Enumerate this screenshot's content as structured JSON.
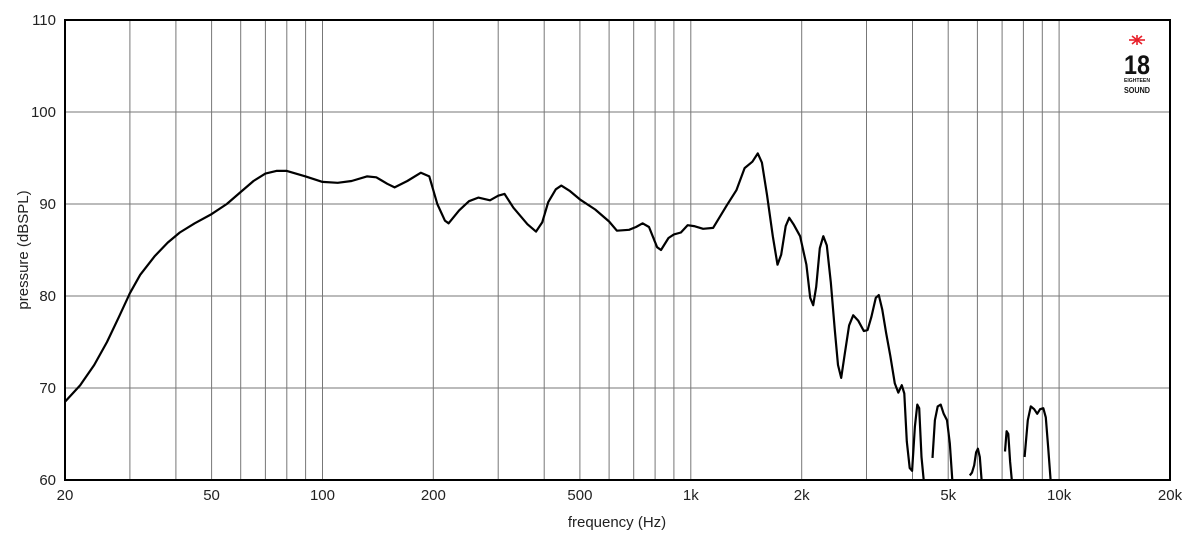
{
  "chart_data": {
    "type": "line",
    "title": "",
    "xlabel": "frequency (Hz)",
    "ylabel": "pressure (dBSPL)",
    "x_scale": "log",
    "xlim": [
      20,
      20000
    ],
    "ylim": [
      60,
      110
    ],
    "grid": true,
    "x_gridlines": [
      30,
      40,
      50,
      60,
      70,
      80,
      90,
      100,
      200,
      300,
      400,
      500,
      600,
      700,
      800,
      900,
      1000,
      2000,
      3000,
      4000,
      5000,
      6000,
      7000,
      8000,
      9000,
      10000
    ],
    "x_ticks": [
      {
        "value": 20,
        "label": "20"
      },
      {
        "value": 50,
        "label": "50"
      },
      {
        "value": 100,
        "label": "100"
      },
      {
        "value": 200,
        "label": "200"
      },
      {
        "value": 500,
        "label": "500"
      },
      {
        "value": 1000,
        "label": "1k"
      },
      {
        "value": 2000,
        "label": "2k"
      },
      {
        "value": 5000,
        "label": "5k"
      },
      {
        "value": 10000,
        "label": "10k"
      },
      {
        "value": 20000,
        "label": "20k"
      }
    ],
    "y_ticks": [
      {
        "value": 60,
        "label": "60"
      },
      {
        "value": 70,
        "label": "70"
      },
      {
        "value": 80,
        "label": "80"
      },
      {
        "value": 90,
        "label": "90"
      },
      {
        "value": 100,
        "label": "100"
      },
      {
        "value": 110,
        "label": "110"
      }
    ],
    "series": [
      {
        "color": "#000000",
        "points": [
          [
            20,
            68.5
          ],
          [
            22,
            70.3
          ],
          [
            24,
            72.5
          ],
          [
            26,
            75.0
          ],
          [
            28,
            77.7
          ],
          [
            30,
            80.3
          ],
          [
            32,
            82.3
          ],
          [
            35,
            84.3
          ],
          [
            38,
            85.8
          ],
          [
            41,
            86.9
          ],
          [
            45,
            87.9
          ],
          [
            50,
            88.9
          ],
          [
            55,
            90.0
          ],
          [
            60,
            91.3
          ],
          [
            65,
            92.5
          ],
          [
            70,
            93.3
          ],
          [
            75,
            93.6
          ],
          [
            80,
            93.6
          ],
          [
            90,
            93.0
          ],
          [
            100,
            92.4
          ],
          [
            110,
            92.3
          ],
          [
            120,
            92.5
          ],
          [
            132,
            93.0
          ],
          [
            140,
            92.9
          ],
          [
            150,
            92.2
          ],
          [
            157,
            91.8
          ],
          [
            170,
            92.5
          ],
          [
            185,
            93.4
          ],
          [
            195,
            93.0
          ],
          [
            205,
            90.0
          ],
          [
            215,
            88.2
          ],
          [
            220,
            87.9
          ],
          [
            235,
            89.3
          ],
          [
            250,
            90.3
          ],
          [
            265,
            90.7
          ],
          [
            285,
            90.4
          ],
          [
            300,
            90.9
          ],
          [
            312,
            91.1
          ],
          [
            330,
            89.6
          ],
          [
            360,
            87.8
          ],
          [
            380,
            87.0
          ],
          [
            395,
            88.0
          ],
          [
            410,
            90.2
          ],
          [
            430,
            91.6
          ],
          [
            445,
            92.0
          ],
          [
            470,
            91.4
          ],
          [
            500,
            90.5
          ],
          [
            550,
            89.4
          ],
          [
            600,
            88.1
          ],
          [
            630,
            87.1
          ],
          [
            680,
            87.2
          ],
          [
            710,
            87.5
          ],
          [
            740,
            87.9
          ],
          [
            770,
            87.5
          ],
          [
            810,
            85.3
          ],
          [
            830,
            85.0
          ],
          [
            870,
            86.3
          ],
          [
            900,
            86.7
          ],
          [
            940,
            86.9
          ],
          [
            980,
            87.7
          ],
          [
            1020,
            87.6
          ],
          [
            1080,
            87.3
          ],
          [
            1150,
            87.4
          ],
          [
            1250,
            89.8
          ],
          [
            1330,
            91.5
          ],
          [
            1400,
            93.9
          ],
          [
            1470,
            94.6
          ],
          [
            1520,
            95.5
          ],
          [
            1560,
            94.5
          ],
          [
            1610,
            91.0
          ],
          [
            1670,
            86.5
          ],
          [
            1720,
            83.4
          ],
          [
            1760,
            84.5
          ],
          [
            1810,
            87.6
          ],
          [
            1850,
            88.5
          ],
          [
            1900,
            87.8
          ],
          [
            1980,
            86.5
          ],
          [
            2060,
            83.4
          ],
          [
            2110,
            79.8
          ],
          [
            2150,
            79.0
          ],
          [
            2190,
            81.0
          ],
          [
            2240,
            85.2
          ],
          [
            2290,
            86.5
          ],
          [
            2340,
            85.5
          ],
          [
            2400,
            81.5
          ],
          [
            2460,
            76.3
          ],
          [
            2510,
            72.5
          ],
          [
            2560,
            71.1
          ],
          [
            2620,
            73.8
          ],
          [
            2690,
            76.8
          ],
          [
            2760,
            77.9
          ],
          [
            2850,
            77.3
          ],
          [
            2950,
            76.2
          ],
          [
            3020,
            76.3
          ],
          [
            3090,
            77.7
          ],
          [
            3180,
            79.8
          ],
          [
            3240,
            80.1
          ],
          [
            3310,
            78.5
          ],
          [
            3390,
            76.0
          ],
          [
            3480,
            73.5
          ],
          [
            3580,
            70.5
          ],
          [
            3660,
            69.5
          ],
          [
            3740,
            70.3
          ],
          [
            3800,
            69.4
          ],
          [
            3860,
            64.2
          ],
          [
            3930,
            61.3
          ],
          [
            3990,
            61.0
          ],
          [
            4060,
            65.8
          ],
          [
            4120,
            68.2
          ],
          [
            4170,
            67.8
          ],
          [
            4230,
            62.5
          ],
          [
            4290,
            60.0
          ],
          [
            4480,
            60.0
          ],
          [
            4530,
            62.4
          ],
          [
            4600,
            66.5
          ],
          [
            4680,
            68.0
          ],
          [
            4770,
            68.2
          ],
          [
            4860,
            67.2
          ],
          [
            4960,
            66.5
          ],
          [
            5050,
            64.0
          ],
          [
            5130,
            60.0
          ],
          [
            5650,
            60.0
          ],
          [
            5720,
            60.5
          ],
          [
            5800,
            60.8
          ],
          [
            5880,
            61.6
          ],
          [
            5950,
            63.0
          ],
          [
            6020,
            63.4
          ],
          [
            6090,
            62.5
          ],
          [
            6160,
            60.0
          ],
          [
            7060,
            60.0
          ],
          [
            7130,
            63.1
          ],
          [
            7200,
            65.3
          ],
          [
            7280,
            65.0
          ],
          [
            7360,
            62.0
          ],
          [
            7440,
            60.0
          ],
          [
            7950,
            60.0
          ],
          [
            8060,
            62.5
          ],
          [
            8220,
            66.5
          ],
          [
            8380,
            68.0
          ],
          [
            8560,
            67.7
          ],
          [
            8720,
            67.2
          ],
          [
            8880,
            67.7
          ],
          [
            9060,
            67.8
          ],
          [
            9200,
            66.8
          ],
          [
            9340,
            63.5
          ],
          [
            9480,
            60.0
          ]
        ]
      }
    ]
  },
  "logo": {
    "number": "18",
    "line1": "EIGHTEEN",
    "line2": "SOUND",
    "accent_color": "#e8202a"
  }
}
